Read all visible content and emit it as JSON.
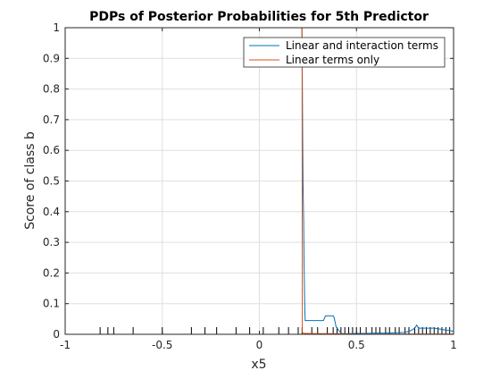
{
  "chart_data": {
    "type": "line",
    "title": "PDPs of Posterior Probabilities for 5th Predictor",
    "xlabel": "x5",
    "ylabel": "Score of class b",
    "xlim": [
      -1,
      1
    ],
    "ylim": [
      0,
      1
    ],
    "xticks": [
      -1,
      -0.5,
      0,
      0.5,
      1
    ],
    "xtick_labels": [
      "-1",
      "-0.5",
      "0",
      "0.5",
      "1"
    ],
    "yticks": [
      0,
      0.1,
      0.2,
      0.3,
      0.4,
      0.5,
      0.6,
      0.7,
      0.8,
      0.9,
      1
    ],
    "ytick_labels": [
      "0",
      "0.1",
      "0.2",
      "0.3",
      "0.4",
      "0.5",
      "0.6",
      "0.7",
      "0.8",
      "0.9",
      "1"
    ],
    "grid": true,
    "legend_location": "top-right",
    "series": [
      {
        "name": "Linear and interaction terms",
        "color": "#0072BD",
        "x": [
          -1,
          0.219,
          0.221,
          0.223,
          0.225,
          0.228,
          0.23,
          0.232,
          0.234,
          0.236,
          0.24,
          0.33,
          0.34,
          0.38,
          0.385,
          0.395,
          0.4,
          0.41,
          0.42,
          0.425,
          0.43,
          0.45,
          0.5,
          0.55,
          0.6,
          0.65,
          0.7,
          0.75,
          0.78,
          0.8,
          0.81,
          0.82,
          0.85,
          0.9,
          0.95,
          1
        ],
        "y": [
          1,
          1,
          0.84,
          0.64,
          0.49,
          0.37,
          0.24,
          0.15,
          0.08,
          0.045,
          0.045,
          0.045,
          0.06,
          0.06,
          0.055,
          0.025,
          0.02,
          0.012,
          0.005,
          0.003,
          0.002,
          0.002,
          0.003,
          0.003,
          0.004,
          0.004,
          0.005,
          0.006,
          0.012,
          0.02,
          0.03,
          0.02,
          0.02,
          0.02,
          0.015,
          0.01
        ]
      },
      {
        "name": "Linear terms only",
        "color": "#D95319",
        "x": [
          -1,
          0.22,
          0.221,
          0.225,
          0.23,
          0.25,
          0.3,
          0.4,
          0.5,
          0.6,
          0.7,
          0.8,
          0.9,
          1
        ],
        "y": [
          1,
          1,
          0.006,
          0.004,
          0.003,
          0.003,
          0.002,
          0.002,
          0.001,
          0.001,
          0.001,
          0.001,
          0.001,
          0.001
        ]
      }
    ],
    "rug_x": [
      -0.82,
      -0.78,
      -0.75,
      -0.65,
      -0.5,
      -0.35,
      -0.28,
      -0.22,
      -0.12,
      -0.05,
      0.02,
      0.1,
      0.15,
      0.2,
      0.22,
      0.27,
      0.3,
      0.35,
      0.38,
      0.4,
      0.42,
      0.44,
      0.46,
      0.48,
      0.5,
      0.52,
      0.55,
      0.58,
      0.6,
      0.62,
      0.65,
      0.67,
      0.7,
      0.72,
      0.75,
      0.77,
      0.8,
      0.82,
      0.84,
      0.86,
      0.88,
      0.9,
      0.92,
      0.94,
      0.96,
      0.98,
      1.0
    ]
  }
}
